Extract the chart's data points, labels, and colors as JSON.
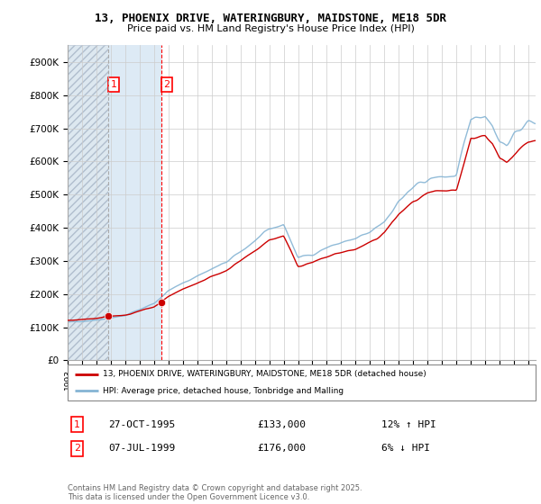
{
  "title1": "13, PHOENIX DRIVE, WATERINGBURY, MAIDSTONE, ME18 5DR",
  "title2": "Price paid vs. HM Land Registry's House Price Index (HPI)",
  "ylim": [
    0,
    950000
  ],
  "yticks": [
    0,
    100000,
    200000,
    300000,
    400000,
    500000,
    600000,
    700000,
    800000,
    900000
  ],
  "ytick_labels": [
    "£0",
    "£100K",
    "£200K",
    "£300K",
    "£400K",
    "£500K",
    "£600K",
    "£700K",
    "£800K",
    "£900K"
  ],
  "sale1_date": 1995.82,
  "sale1_price": 133000,
  "sale1_label": "1",
  "sale2_date": 1999.52,
  "sale2_price": 176000,
  "sale2_label": "2",
  "hpi_color": "#85b4d4",
  "price_color": "#cc0000",
  "sale_marker_color": "#cc0000",
  "legend_price_label": "13, PHOENIX DRIVE, WATERINGBURY, MAIDSTONE, ME18 5DR (detached house)",
  "legend_hpi_label": "HPI: Average price, detached house, Tonbridge and Malling",
  "table_row1": [
    "1",
    "27-OCT-1995",
    "£133,000",
    "12% ↑ HPI"
  ],
  "table_row2": [
    "2",
    "07-JUL-1999",
    "£176,000",
    "6% ↓ HPI"
  ],
  "footnote": "Contains HM Land Registry data © Crown copyright and database right 2025.\nThis data is licensed under the Open Government Licence v3.0.",
  "hatch_color": "#dde8f0",
  "solid_bg_color": "#ddeaf5",
  "xmin": 1993,
  "xmax": 2025.5
}
